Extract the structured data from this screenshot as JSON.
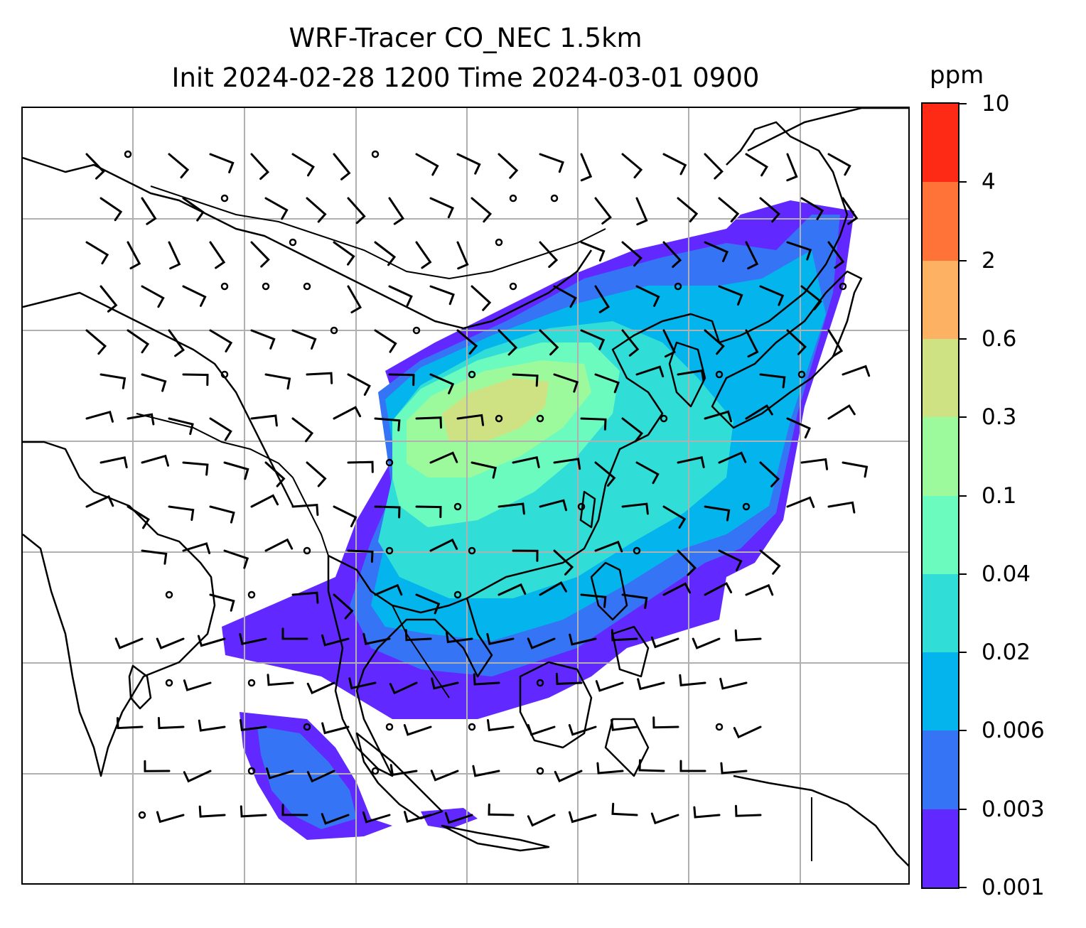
{
  "title": {
    "line1": "WRF-Tracer CO_NEC 1.5km",
    "line2": "Init 2024-02-28 1200 Time 2024-03-01 0900"
  },
  "colorbar": {
    "unit": "ppm",
    "levels": [
      "0.001",
      "0.003",
      "0.006",
      "0.02",
      "0.04",
      "0.1",
      "0.3",
      "0.6",
      "2",
      "4",
      "10"
    ],
    "colors": [
      "#6129ff",
      "#3575f5",
      "#03b5ec",
      "#31ded7",
      "#6bfbbf",
      "#9dfa9c",
      "#cfe283",
      "#fdb163",
      "#ff7338",
      "#fe2a16"
    ]
  },
  "map": {
    "layers": [
      "coastlines",
      "country-borders",
      "gridlines",
      "wind-barbs",
      "co-tracer-shading"
    ]
  }
}
